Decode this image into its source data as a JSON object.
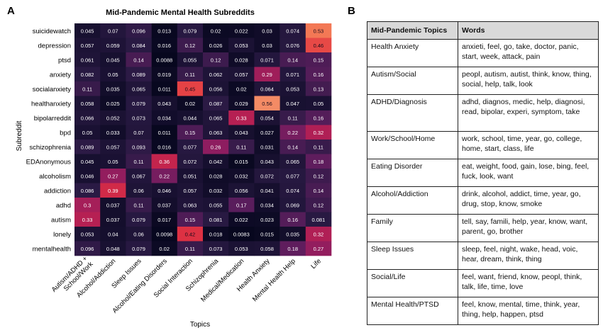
{
  "panels": {
    "a": "A",
    "b": "B"
  },
  "chart_data": {
    "type": "heatmap",
    "title": "Mid-Pandemic Mental Health Subreddits",
    "xlabel": "Topics",
    "ylabel": "Subreddit",
    "columns": [
      "Autism/ADHD + School/Work",
      "Alcohol/Addiction",
      "Sleep Issues",
      "Alcohol/Eating Disorders",
      "Social Interaction",
      "Schizophrenia",
      "Medical/Medication",
      "Health Anxiety",
      "Mental Health Help",
      "Life"
    ],
    "rows": [
      "suicidewatch",
      "depression",
      "ptsd",
      "anxiety",
      "socialanxiety",
      "healthanxiety",
      "bipolarreddit",
      "bpd",
      "schizophrenia",
      "EDAnonymous",
      "alcoholism",
      "addiction",
      "adhd",
      "autism",
      "lonely",
      "mentalhealth"
    ],
    "values": [
      [
        0.045,
        0.07,
        0.096,
        0.013,
        0.079,
        0.02,
        0.022,
        0.03,
        0.074,
        0.53
      ],
      [
        0.057,
        0.059,
        0.084,
        0.016,
        0.12,
        0.026,
        0.053,
        0.03,
        0.076,
        0.46
      ],
      [
        0.061,
        0.045,
        0.14,
        0.0088,
        0.055,
        0.12,
        0.028,
        0.071,
        0.14,
        0.15
      ],
      [
        0.082,
        0.05,
        0.089,
        0.019,
        0.11,
        0.062,
        0.057,
        0.29,
        0.071,
        0.16
      ],
      [
        0.11,
        0.035,
        0.065,
        0.011,
        0.45,
        0.056,
        0.02,
        0.064,
        0.053,
        0.13
      ],
      [
        0.058,
        0.025,
        0.079,
        0.043,
        0.02,
        0.087,
        0.029,
        0.56,
        0.047,
        0.05
      ],
      [
        0.066,
        0.052,
        0.073,
        0.034,
        0.044,
        0.065,
        0.33,
        0.054,
        0.11,
        0.16
      ],
      [
        0.05,
        0.033,
        0.07,
        0.011,
        0.15,
        0.063,
        0.043,
        0.027,
        0.22,
        0.32
      ],
      [
        0.089,
        0.057,
        0.093,
        0.016,
        0.077,
        0.26,
        0.11,
        0.031,
        0.14,
        0.11
      ],
      [
        0.045,
        0.05,
        0.11,
        0.36,
        0.072,
        0.042,
        0.015,
        0.043,
        0.065,
        0.18
      ],
      [
        0.046,
        0.27,
        0.067,
        0.22,
        0.051,
        0.028,
        0.032,
        0.072,
        0.077,
        0.12
      ],
      [
        0.086,
        0.39,
        0.06,
        0.046,
        0.057,
        0.032,
        0.056,
        0.041,
        0.074,
        0.14
      ],
      [
        0.3,
        0.037,
        0.11,
        0.037,
        0.063,
        0.055,
        0.17,
        0.034,
        0.069,
        0.12
      ],
      [
        0.33,
        0.037,
        0.079,
        0.017,
        0.15,
        0.081,
        0.022,
        0.023,
        0.16,
        0.081
      ],
      [
        0.053,
        0.04,
        0.06,
        0.0098,
        0.42,
        0.018,
        0.0083,
        0.015,
        0.035,
        0.32
      ],
      [
        0.096,
        0.048,
        0.079,
        0.02,
        0.11,
        0.073,
        0.053,
        0.058,
        0.18,
        0.27
      ]
    ],
    "colormap": [
      "#03051a",
      "#2a1a44",
      "#5a1d5c",
      "#8c1d61",
      "#bd2050",
      "#e13342",
      "#f26e4c",
      "#f6a47b"
    ],
    "vmin": 0,
    "vmax": 0.6
  },
  "table": {
    "headers": [
      "Mid-Pandemic Topics",
      "Words"
    ],
    "rows": [
      {
        "topic": "Health Anxiety",
        "words": "anxieti, feel, go, take, doctor, panic, start, week, attack, pain"
      },
      {
        "topic": "Autism/Social",
        "words": "peopl, autism, autist, think, know, thing, social, help, talk, look"
      },
      {
        "topic": "ADHD/Diagnosis",
        "words": "adhd, diagnos, medic, help, diagnosi, read, bipolar, experi, symptom, take"
      },
      {
        "topic": "Work/School/Home",
        "words": "work, school, time, year, go, college, home, start, class, life"
      },
      {
        "topic": "Eating Disorder",
        "words": "eat, weight, food, gain, lose, bing, feel, fuck, look, want"
      },
      {
        "topic": "Alcohol/Addiction",
        "words": "drink, alcohol, addict, time, year, go, drug, stop, know, smoke"
      },
      {
        "topic": "Family",
        "words": "tell, say, famili, help, year, know, want, parent, go, brother"
      },
      {
        "topic": "Sleep Issues",
        "words": "sleep, feel, night, wake, head, voic, hear, dream, think, thing"
      },
      {
        "topic": "Social/Life",
        "words": "feel, want, friend, know, peopl, think, talk, life, time, love"
      },
      {
        "topic": "Mental Health/PTSD",
        "words": "feel, know, mental, time, think, year, thing, help, happen, ptsd"
      }
    ]
  }
}
